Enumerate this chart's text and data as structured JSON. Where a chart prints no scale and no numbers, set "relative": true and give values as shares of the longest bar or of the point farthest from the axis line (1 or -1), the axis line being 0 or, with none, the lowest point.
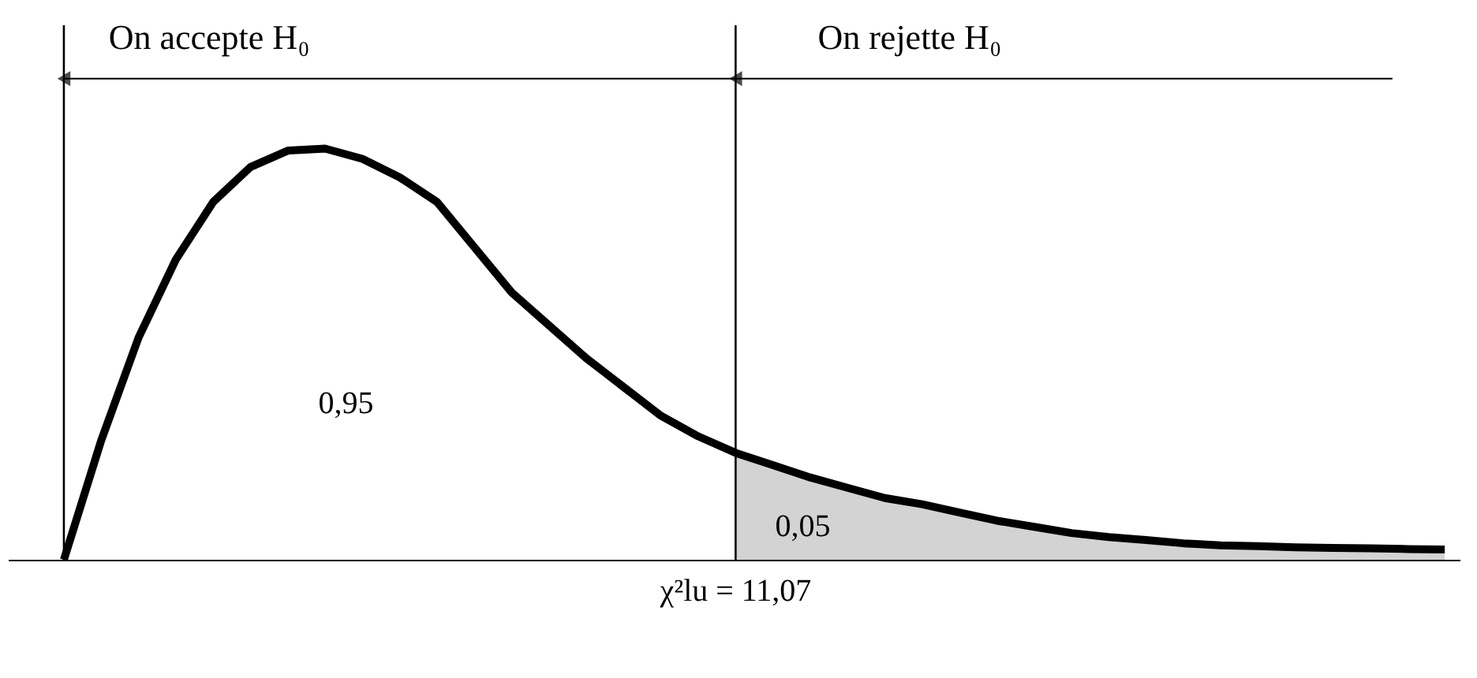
{
  "chart_data": {
    "type": "line",
    "relative": true,
    "categories": [
      null,
      null,
      null,
      null,
      null,
      null,
      null,
      null,
      null,
      null,
      null,
      null,
      null,
      null,
      null,
      null,
      null,
      null,
      null,
      null,
      null,
      null,
      null,
      null,
      null,
      null,
      null,
      null,
      null,
      null,
      null,
      null,
      null,
      null,
      null,
      null,
      null,
      null
    ],
    "series": [
      {
        "color": "#000000",
        "values": [
          0,
          0.29,
          0.54,
          0.73,
          0.87,
          0.955,
          0.995,
          1.0,
          0.975,
          0.93,
          0.87,
          0.76,
          0.65,
          0.57,
          0.49,
          0.42,
          0.35,
          0.3,
          0.26,
          0.23,
          0.2,
          0.175,
          0.15,
          0.135,
          0.115,
          0.095,
          0.08,
          0.065,
          0.055,
          0.048,
          0.04,
          0.035,
          0.033,
          0.03,
          0.029,
          0.028,
          0.026,
          0.025
        ]
      },
      {
        "type": "area",
        "color": "#c0c0c0",
        "values": [
          null,
          null,
          null,
          null,
          null,
          null,
          null,
          null,
          null,
          null,
          null,
          null,
          null,
          null,
          null,
          null,
          null,
          null,
          0.26,
          0.23,
          0.2,
          0.175,
          0.15,
          0.135,
          0.115,
          0.095,
          0.08,
          0.065,
          0.055,
          0.048,
          0.04,
          0.035,
          0.033,
          0.03,
          0.029,
          0.028,
          0.026,
          0.025
        ]
      }
    ],
    "annotations": [
      "On accepte H₀",
      "On rejette H₀",
      "0,95",
      "0,05",
      "χ²lu = 11,07"
    ]
  }
}
